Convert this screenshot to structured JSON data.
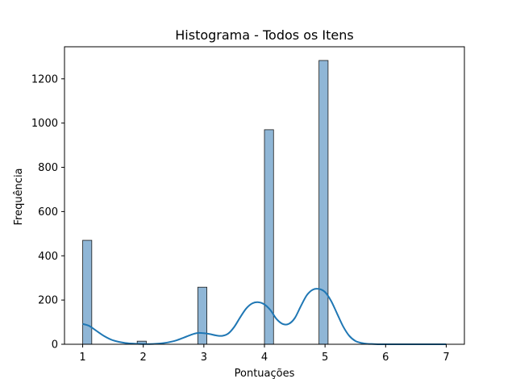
{
  "chart_data": {
    "type": "bar",
    "title": "Histograma - Todos os Itens",
    "xlabel": "Pontuações",
    "ylabel": "Frequência",
    "xlim": [
      0.7,
      7.3
    ],
    "ylim": [
      0,
      1345
    ],
    "xticks": [
      1,
      2,
      3,
      4,
      5,
      6,
      7
    ],
    "yticks": [
      0,
      200,
      400,
      600,
      800,
      1000,
      1200
    ],
    "bin_width": 0.15,
    "bins": [
      {
        "x0": 1.0,
        "x1": 1.15,
        "count": 470
      },
      {
        "x0": 1.9,
        "x1": 2.05,
        "count": 14
      },
      {
        "x0": 2.9,
        "x1": 3.05,
        "count": 258
      },
      {
        "x0": 4.0,
        "x1": 4.15,
        "count": 970
      },
      {
        "x0": 4.9,
        "x1": 5.05,
        "count": 1283
      }
    ],
    "kde": {
      "x": [
        1.0,
        1.1,
        1.2,
        1.35,
        1.5,
        1.7,
        1.9,
        2.1,
        2.3,
        2.5,
        2.65,
        2.8,
        2.9,
        3.0,
        3.1,
        3.2,
        3.3,
        3.4,
        3.5,
        3.6,
        3.7,
        3.8,
        3.9,
        4.0,
        4.1,
        4.2,
        4.3,
        4.4,
        4.5,
        4.6,
        4.7,
        4.8,
        4.9,
        5.0,
        5.1,
        5.2,
        5.3,
        5.4,
        5.5,
        5.6,
        5.7,
        5.8,
        5.9,
        6.0,
        6.3,
        6.6,
        7.0
      ],
      "y": [
        92,
        84,
        66,
        38,
        18,
        6,
        2,
        1,
        4,
        14,
        28,
        44,
        51,
        50,
        46,
        40,
        38,
        48,
        78,
        122,
        162,
        185,
        190,
        180,
        154,
        114,
        92,
        92,
        118,
        172,
        222,
        247,
        250,
        236,
        196,
        138,
        80,
        38,
        15,
        6,
        2,
        1,
        0,
        0,
        0,
        0,
        0
      ],
      "color": "#1f77b4"
    },
    "bar_fill": "#8fb6d6",
    "bar_edge": "#1a1a1a",
    "grid": false,
    "legend": "none"
  }
}
